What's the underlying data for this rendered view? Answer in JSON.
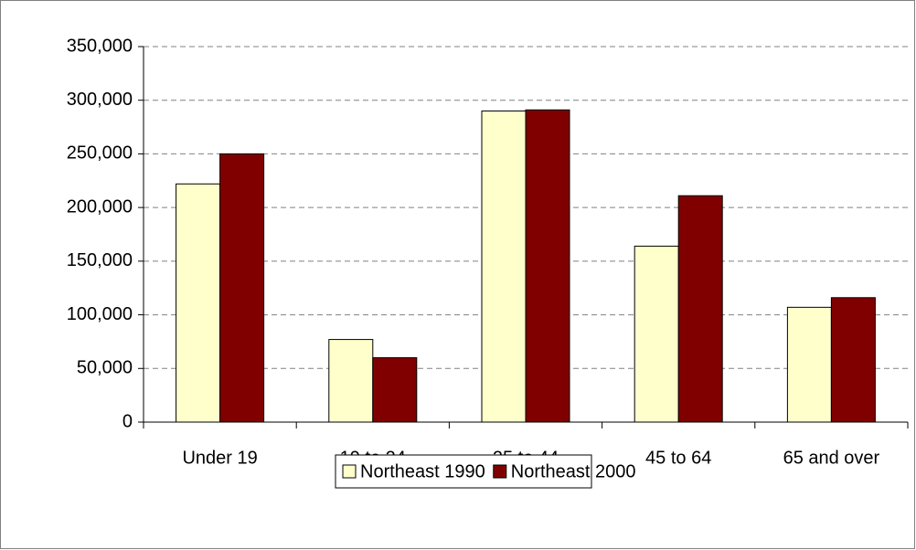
{
  "chart_data": {
    "type": "bar",
    "categories": [
      "Under 19",
      "19 to 24",
      "25 to 44",
      "45 to 64",
      "65 and over"
    ],
    "series": [
      {
        "name": "Northeast 1990",
        "color": "#ffffcc",
        "values": [
          222000,
          77000,
          290000,
          164000,
          107000
        ]
      },
      {
        "name": "Northeast 2000",
        "color": "#800000",
        "values": [
          250000,
          60000,
          291000,
          211000,
          116000
        ]
      }
    ],
    "ylim": [
      0,
      350000
    ],
    "yticks": [
      0,
      {
        "value": 50000,
        "label": "50,000"
      },
      {
        "value": 100000,
        "label": "100,000"
      },
      {
        "value": 150000,
        "label": "150,000"
      },
      {
        "value": 200000,
        "label": "200,000"
      },
      {
        "value": 250000,
        "label": "250,000"
      },
      {
        "value": 300000,
        "label": "300,000"
      },
      {
        "value": 350000,
        "label": "350,000"
      }
    ],
    "grid": true,
    "legend": "bottom"
  }
}
